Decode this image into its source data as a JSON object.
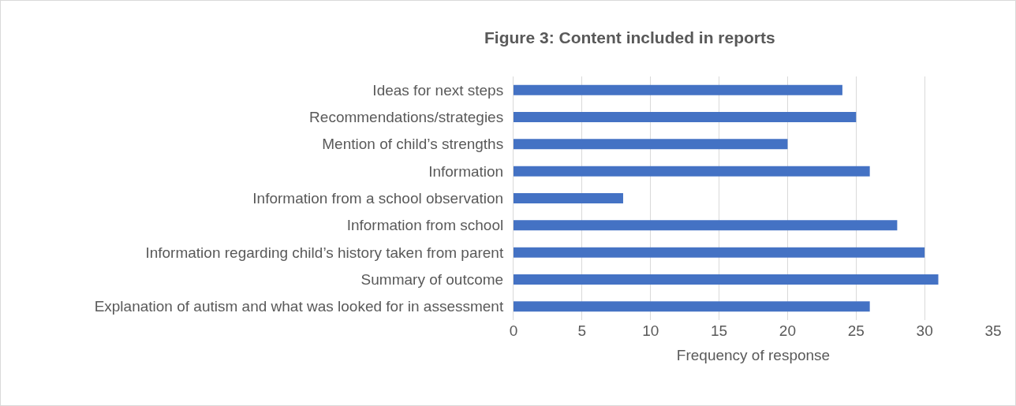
{
  "chart_data": {
    "type": "bar",
    "orientation": "horizontal",
    "title": "Figure 3: Content included in reports",
    "xlabel": "Frequency of response",
    "categories": [
      "Ideas for next steps",
      "Recommendations/strategies",
      "Mention of child’s strengths",
      "Information",
      "Information from a school observation",
      "Information from school",
      "Information regarding child’s history taken from parent",
      "Summary of outcome",
      "Explanation of autism and what was looked for in assessment"
    ],
    "values": [
      24,
      25,
      20,
      26,
      8,
      28,
      30,
      31,
      26
    ],
    "color": "#4472c4",
    "xlim": [
      0,
      35
    ],
    "xticks": [
      0,
      5,
      10,
      15,
      20,
      25,
      30,
      35
    ],
    "grid": "x"
  }
}
